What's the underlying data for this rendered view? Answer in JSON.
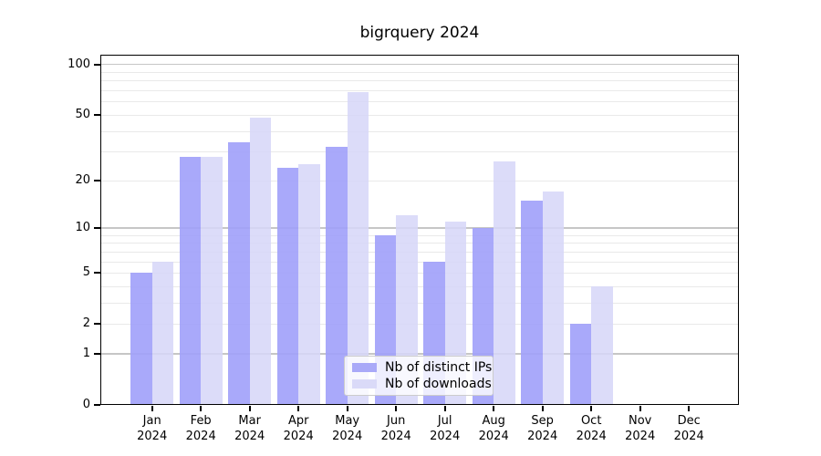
{
  "title": "bigrquery 2024",
  "chart_data": {
    "type": "bar",
    "title": "bigrquery 2024",
    "categories": [
      "Jan",
      "Feb",
      "Mar",
      "Apr",
      "May",
      "Jun",
      "Jul",
      "Aug",
      "Sep",
      "Oct",
      "Nov",
      "Dec"
    ],
    "category_year": "2024",
    "series": [
      {
        "name": "Nb of distinct IPs",
        "color": "#a9a9f8",
        "bar_fill": "rgba(160,160,249,0.9)",
        "values": [
          5,
          28,
          34,
          24,
          32,
          9,
          6,
          10,
          15,
          2,
          0,
          0
        ]
      },
      {
        "name": "Nb of downloads",
        "color": "#dadaf8",
        "bar_fill": "rgba(214,214,248,0.85)",
        "values": [
          6,
          28,
          48,
          25,
          68,
          12,
          11,
          26,
          17,
          4,
          0,
          0
        ]
      }
    ],
    "y_axis": {
      "scale": "log10(1+x)",
      "tick_labels": [
        0,
        1,
        2,
        5,
        10,
        20,
        50,
        100
      ],
      "major_gridlines": [
        1,
        10,
        100
      ],
      "minor_gridlines": [
        2,
        3,
        4,
        5,
        6,
        7,
        8,
        9,
        20,
        30,
        40,
        50,
        60,
        70,
        80,
        90
      ]
    },
    "legend_position": "lower center",
    "grid": "horizontal"
  },
  "colors": {
    "axis": "#000000",
    "grid_minor": "#e9e9e9",
    "grid_major": "#c6c6c6",
    "legend_border": "#cccccc",
    "legend_bg": "rgba(255,255,255,0.8)",
    "text": "#000000"
  }
}
